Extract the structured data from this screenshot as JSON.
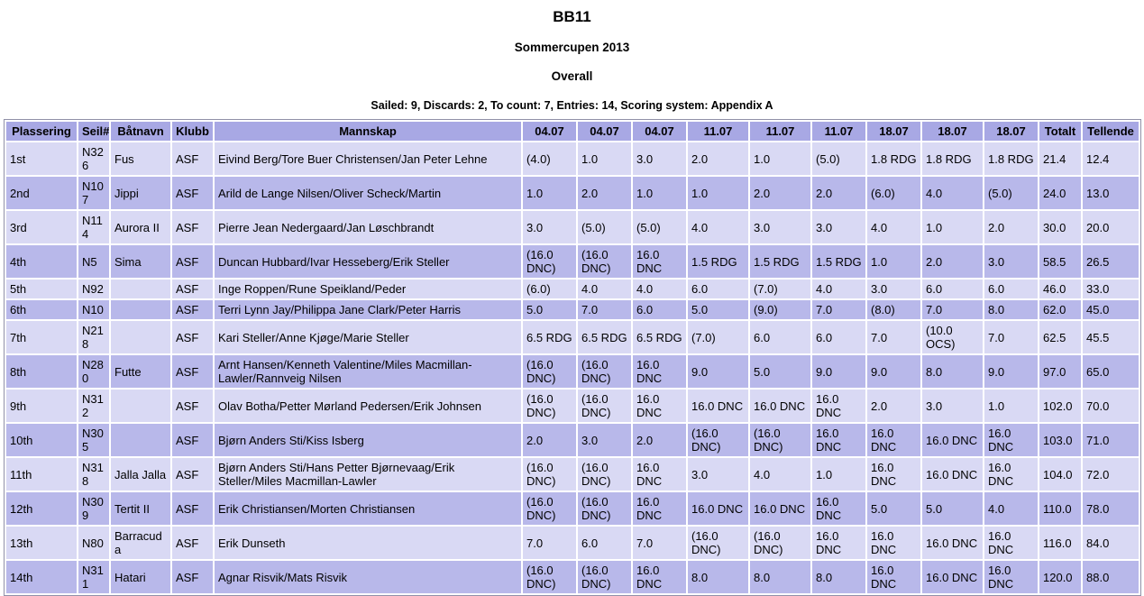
{
  "page": {
    "title": "BB11",
    "subtitle": "Sommercupen 2013",
    "section": "Overall",
    "summary": "Sailed: 9, Discards: 2, To count: 7, Entries: 14, Scoring system: Appendix A"
  },
  "colors": {
    "header_bg": "#a8a8e4",
    "row_light": "#d9d9f4",
    "row_dark": "#b8b8ea",
    "table_border": "#9090a8",
    "text": "#000000",
    "page_bg": "#ffffff"
  },
  "table": {
    "column_names": [
      "rank",
      "sail-number",
      "boat-name",
      "club",
      "crew",
      "race-1",
      "race-2",
      "race-3",
      "race-4",
      "race-5",
      "race-6",
      "race-7",
      "race-8",
      "race-9",
      "total",
      "nett"
    ],
    "headers": [
      "Plassering",
      "Seil#",
      "Båtnavn",
      "Klubb",
      "Mannskap",
      "04.07",
      "04.07",
      "04.07",
      "11.07",
      "11.07",
      "11.07",
      "18.07",
      "18.07",
      "18.07",
      "Totalt",
      "Tellende"
    ],
    "rows": [
      [
        "1st",
        "N326",
        "Fus",
        "ASF",
        "Eivind Berg/Tore Buer Christensen/Jan Peter Lehne",
        "(4.0)",
        "1.0",
        "3.0",
        "2.0",
        "1.0",
        "(5.0)",
        "1.8 RDG",
        "1.8 RDG",
        "1.8 RDG",
        "21.4",
        "12.4"
      ],
      [
        "2nd",
        "N107",
        "Jippi",
        "ASF",
        "Arild de Lange Nilsen/Oliver Scheck/Martin",
        "1.0",
        "2.0",
        "1.0",
        "1.0",
        "2.0",
        "2.0",
        "(6.0)",
        "4.0",
        "(5.0)",
        "24.0",
        "13.0"
      ],
      [
        "3rd",
        "N114",
        "Aurora II",
        "ASF",
        "Pierre Jean Nedergaard/Jan Løschbrandt",
        "3.0",
        "(5.0)",
        "(5.0)",
        "4.0",
        "3.0",
        "3.0",
        "4.0",
        "1.0",
        "2.0",
        "30.0",
        "20.0"
      ],
      [
        "4th",
        "N5",
        "Sima",
        "ASF",
        "Duncan Hubbard/Ivar Hesseberg/Erik Steller",
        "(16.0 DNC)",
        "(16.0 DNC)",
        "16.0 DNC",
        "1.5 RDG",
        "1.5 RDG",
        "1.5 RDG",
        "1.0",
        "2.0",
        "3.0",
        "58.5",
        "26.5"
      ],
      [
        "5th",
        "N92",
        "",
        "ASF",
        "Inge Roppen/Rune Speikland/Peder",
        "(6.0)",
        "4.0",
        "4.0",
        "6.0",
        "(7.0)",
        "4.0",
        "3.0",
        "6.0",
        "6.0",
        "46.0",
        "33.0"
      ],
      [
        "6th",
        "N10",
        "",
        "ASF",
        "Terri Lynn Jay/Philippa Jane Clark/Peter Harris",
        "5.0",
        "7.0",
        "6.0",
        "5.0",
        "(9.0)",
        "7.0",
        "(8.0)",
        "7.0",
        "8.0",
        "62.0",
        "45.0"
      ],
      [
        "7th",
        "N218",
        "",
        "ASF",
        "Kari Steller/Anne Kjøge/Marie Steller",
        "6.5 RDG",
        "6.5 RDG",
        "6.5 RDG",
        "(7.0)",
        "6.0",
        "6.0",
        "7.0",
        "(10.0 OCS)",
        "7.0",
        "62.5",
        "45.5"
      ],
      [
        "8th",
        "N280",
        "Futte",
        "ASF",
        "Arnt Hansen/Kenneth Valentine/Miles Macmillan-Lawler/Rannveig Nilsen",
        "(16.0 DNC)",
        "(16.0 DNC)",
        "16.0 DNC",
        "9.0",
        "5.0",
        "9.0",
        "9.0",
        "8.0",
        "9.0",
        "97.0",
        "65.0"
      ],
      [
        "9th",
        "N312",
        "",
        "ASF",
        "Olav Botha/Petter Mørland Pedersen/Erik Johnsen",
        "(16.0 DNC)",
        "(16.0 DNC)",
        "16.0 DNC",
        "16.0 DNC",
        "16.0 DNC",
        "16.0 DNC",
        "2.0",
        "3.0",
        "1.0",
        "102.0",
        "70.0"
      ],
      [
        "10th",
        "N305",
        "",
        "ASF",
        "Bjørn Anders Sti/Kiss Isberg",
        "2.0",
        "3.0",
        "2.0",
        "(16.0 DNC)",
        "(16.0 DNC)",
        "16.0 DNC",
        "16.0 DNC",
        "16.0 DNC",
        "16.0 DNC",
        "103.0",
        "71.0"
      ],
      [
        "11th",
        "N318",
        "Jalla Jalla",
        "ASF",
        "Bjørn Anders Sti/Hans Petter Bjørnevaag/Erik Steller/Miles Macmillan-Lawler",
        "(16.0 DNC)",
        "(16.0 DNC)",
        "16.0 DNC",
        "3.0",
        "4.0",
        "1.0",
        "16.0 DNC",
        "16.0 DNC",
        "16.0 DNC",
        "104.0",
        "72.0"
      ],
      [
        "12th",
        "N309",
        "Tertit II",
        "ASF",
        "Erik Christiansen/Morten Christiansen",
        "(16.0 DNC)",
        "(16.0 DNC)",
        "16.0 DNC",
        "16.0 DNC",
        "16.0 DNC",
        "16.0 DNC",
        "5.0",
        "5.0",
        "4.0",
        "110.0",
        "78.0"
      ],
      [
        "13th",
        "N80",
        "Barracuda",
        "ASF",
        "Erik Dunseth",
        "7.0",
        "6.0",
        "7.0",
        "(16.0 DNC)",
        "(16.0 DNC)",
        "16.0 DNC",
        "16.0 DNC",
        "16.0 DNC",
        "16.0 DNC",
        "116.0",
        "84.0"
      ],
      [
        "14th",
        "N311",
        "Hatari",
        "ASF",
        "Agnar Risvik/Mats Risvik",
        "(16.0 DNC)",
        "(16.0 DNC)",
        "16.0 DNC",
        "8.0",
        "8.0",
        "8.0",
        "16.0 DNC",
        "16.0 DNC",
        "16.0 DNC",
        "120.0",
        "88.0"
      ]
    ]
  }
}
